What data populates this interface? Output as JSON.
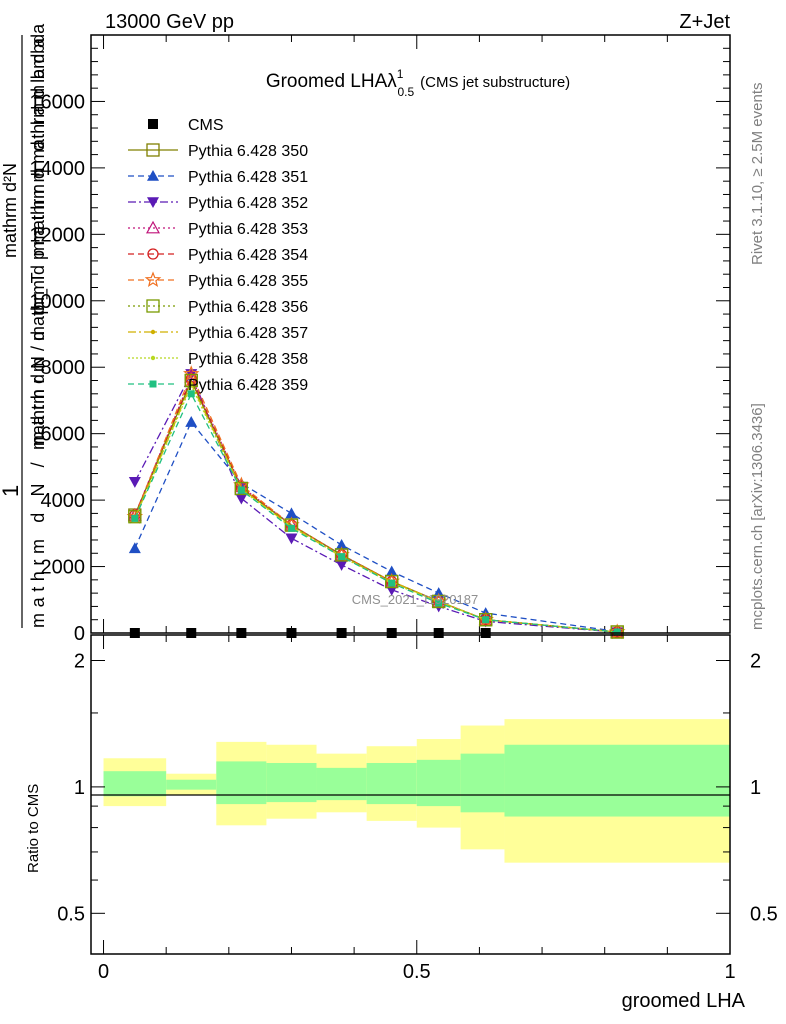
{
  "header": {
    "beam": "13000 GeV pp",
    "process": "Z+Jet"
  },
  "side_labels": {
    "rivet": "Rivet 3.1.10, ≥ 2.5M events",
    "mcplots": "mcplots.cern.ch [arXiv:1306.3436]"
  },
  "chart_data": [
    {
      "type": "line",
      "title": "Groomed LHA",
      "title_lambda": "λ",
      "title_sup": "1",
      "title_sub": "0.5",
      "subtitle": "(CMS jet substructure)",
      "watermark": "CMS_2021_I1920187",
      "ylabel_lines": [
        "mathrm d²N",
        "1",
        "mathrm d N / mathrm d p mathrm d mathrm d lambda",
        "mathrm d N / mathrm d p_T mathrm d lambda"
      ],
      "ylim": [
        0,
        18000
      ],
      "yticks": [
        0,
        2000,
        4000,
        6000,
        8000,
        10000,
        12000,
        14000,
        16000
      ],
      "ytick_labels": [
        "0",
        "2000",
        "4000",
        "6000",
        "8000",
        "10000",
        "12000",
        "14000",
        "16000"
      ],
      "xlim": [
        -0.02,
        1.0
      ],
      "x": [
        0.05,
        0.14,
        0.22,
        0.3,
        0.38,
        0.46,
        0.535,
        0.61,
        0.82
      ],
      "cms": [
        0,
        0,
        0,
        0,
        0,
        0,
        0,
        0,
        0
      ],
      "legend_position": "top-left",
      "series": [
        {
          "name": "CMS",
          "color": "#000000",
          "marker": "filled-square",
          "dash": "none",
          "values": [
            0,
            0,
            0,
            0,
            0,
            0,
            0,
            0,
            0
          ]
        },
        {
          "name": "Pythia 6.428 350",
          "color": "#808000",
          "marker": "open-square",
          "dash": "solid",
          "values": [
            3550,
            7600,
            4350,
            3250,
            2350,
            1550,
            950,
            400,
            30
          ]
        },
        {
          "name": "Pythia 6.428 351",
          "color": "#1f4fc4",
          "marker": "filled-triangle-up",
          "dash": "6,4",
          "values": [
            2550,
            6350,
            4500,
            3600,
            2650,
            1850,
            1200,
            600,
            45
          ]
        },
        {
          "name": "Pythia 6.428 352",
          "color": "#5a1ab5",
          "marker": "filled-triangle-down",
          "dash": "8,3,2,3",
          "values": [
            4550,
            7800,
            4050,
            2850,
            2050,
            1300,
            800,
            350,
            25
          ]
        },
        {
          "name": "Pythia 6.428 353",
          "color": "#c0147a",
          "marker": "open-triangle-up",
          "dash": "2,3",
          "values": [
            3550,
            7700,
            4400,
            3250,
            2350,
            1550,
            950,
            400,
            30
          ]
        },
        {
          "name": "Pythia 6.428 354",
          "color": "#d42020",
          "marker": "open-circle",
          "dash": "6,4",
          "values": [
            3550,
            7650,
            4400,
            3250,
            2350,
            1550,
            950,
            400,
            30
          ]
        },
        {
          "name": "Pythia 6.428 355",
          "color": "#f07020",
          "marker": "open-star",
          "dash": "6,4",
          "values": [
            3500,
            7800,
            4450,
            3250,
            2350,
            1550,
            950,
            400,
            30
          ]
        },
        {
          "name": "Pythia 6.428 356",
          "color": "#7a9a00",
          "marker": "open-square",
          "dash": "2,3",
          "values": [
            3500,
            7600,
            4350,
            3250,
            2350,
            1550,
            950,
            400,
            30
          ]
        },
        {
          "name": "Pythia 6.428 357",
          "color": "#d0b000",
          "marker": "small-dot",
          "dash": "8,3,2,3",
          "values": [
            3450,
            7500,
            4350,
            3200,
            2300,
            1550,
            950,
            400,
            30
          ]
        },
        {
          "name": "Pythia 6.428 358",
          "color": "#b8d820",
          "marker": "small-dot",
          "dash": "2,2",
          "values": [
            3450,
            7450,
            4300,
            3200,
            2300,
            1500,
            950,
            400,
            30
          ]
        },
        {
          "name": "Pythia 6.428 359",
          "color": "#20c080",
          "marker": "filled-square-small",
          "dash": "6,4",
          "values": [
            3450,
            7200,
            4300,
            3150,
            2300,
            1500,
            900,
            400,
            30
          ]
        }
      ]
    },
    {
      "type": "area",
      "ylabel": "Ratio to CMS",
      "xlabel": "groomed LHA",
      "xlim": [
        -0.02,
        1.0
      ],
      "xticks": [
        0,
        0.5,
        1
      ],
      "xtick_labels": [
        "0",
        "0.5",
        "1"
      ],
      "ylim": [
        0.4,
        2.3
      ],
      "yticks": [
        0.5,
        1,
        2
      ],
      "ytick_labels": [
        "0.5",
        "1",
        "2"
      ],
      "bins": [
        {
          "x0": 0.0,
          "x1": 0.1,
          "inner": [
            0.95,
            1.09
          ],
          "outer": [
            0.9,
            1.17
          ]
        },
        {
          "x0": 0.1,
          "x1": 0.18,
          "inner": [
            0.985,
            1.04
          ],
          "outer": [
            0.955,
            1.075
          ]
        },
        {
          "x0": 0.18,
          "x1": 0.26,
          "inner": [
            0.91,
            1.15
          ],
          "outer": [
            0.81,
            1.28
          ]
        },
        {
          "x0": 0.26,
          "x1": 0.34,
          "inner": [
            0.92,
            1.14
          ],
          "outer": [
            0.84,
            1.26
          ]
        },
        {
          "x0": 0.34,
          "x1": 0.42,
          "inner": [
            0.93,
            1.11
          ],
          "outer": [
            0.87,
            1.2
          ]
        },
        {
          "x0": 0.42,
          "x1": 0.5,
          "inner": [
            0.91,
            1.14
          ],
          "outer": [
            0.83,
            1.25
          ]
        },
        {
          "x0": 0.5,
          "x1": 0.57,
          "inner": [
            0.9,
            1.16
          ],
          "outer": [
            0.8,
            1.3
          ]
        },
        {
          "x0": 0.57,
          "x1": 0.64,
          "inner": [
            0.87,
            1.2
          ],
          "outer": [
            0.71,
            1.4
          ]
        },
        {
          "x0": 0.64,
          "x1": 1.0,
          "inner": [
            0.85,
            1.26
          ],
          "outer": [
            0.66,
            1.45
          ]
        }
      ],
      "inner_color": "#99ff99",
      "outer_color": "#ffff99"
    }
  ]
}
